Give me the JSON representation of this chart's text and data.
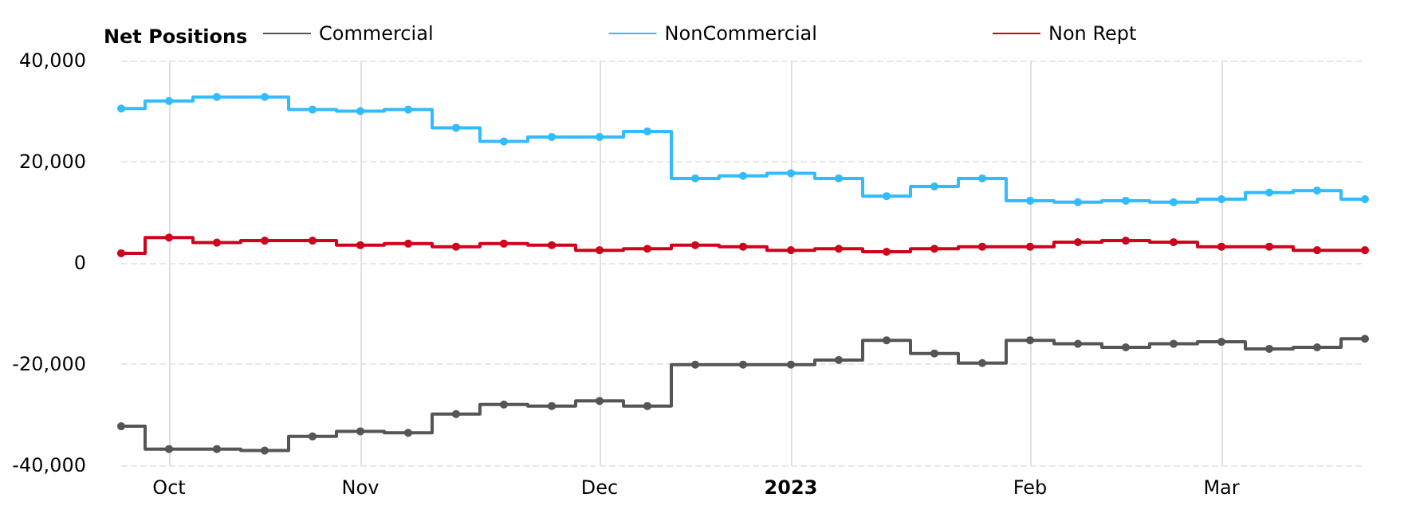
{
  "chart_data": {
    "type": "step",
    "legend_title": "Net Positions",
    "categories": [
      null,
      "Oct",
      null,
      null,
      null,
      "Nov",
      null,
      null,
      null,
      null,
      "Dec",
      null,
      null,
      null,
      "2023",
      null,
      null,
      null,
      null,
      "Feb",
      null,
      null,
      null,
      "Mar",
      null,
      null,
      null
    ],
    "series": [
      {
        "name": "Commercial",
        "color": "#555555",
        "values": [
          -32300,
          -36800,
          -36800,
          -37100,
          -34300,
          -33300,
          -33600,
          -29900,
          -28000,
          -28300,
          -27300,
          -28300,
          -20100,
          -20100,
          -20100,
          -19200,
          -15300,
          -17900,
          -19800,
          -15300,
          -16000,
          -16700,
          -16000,
          -15600,
          -17000,
          -16700,
          -15000
        ]
      },
      {
        "name": "NonCommercial",
        "color": "#33bbff",
        "values": [
          30500,
          32000,
          32800,
          32800,
          30300,
          30000,
          30300,
          26700,
          24000,
          24900,
          24900,
          26000,
          16700,
          17200,
          17700,
          16700,
          13200,
          15100,
          16700,
          12300,
          12000,
          12300,
          12000,
          12600,
          13900,
          14300,
          12600
        ]
      },
      {
        "name": "Non Rept",
        "color": "#d0021b",
        "values": [
          1900,
          5000,
          4000,
          4400,
          4400,
          3500,
          3800,
          3200,
          3800,
          3500,
          2500,
          2800,
          3500,
          3200,
          2500,
          2800,
          2200,
          2800,
          3200,
          3200,
          4100,
          4400,
          4100,
          3200,
          3200,
          2500,
          2500
        ]
      }
    ],
    "ylim": [
      -40000,
      40000
    ],
    "yticks": [
      {
        "value": -40000,
        "label": "-40,000"
      },
      {
        "value": -20000,
        "label": "-20,000"
      },
      0,
      {
        "value": 20000,
        "label": "20,000"
      },
      {
        "value": 40000,
        "label": "40,000"
      }
    ],
    "grid": true,
    "legend": "top",
    "marker": "circle",
    "line_style": "solid"
  }
}
